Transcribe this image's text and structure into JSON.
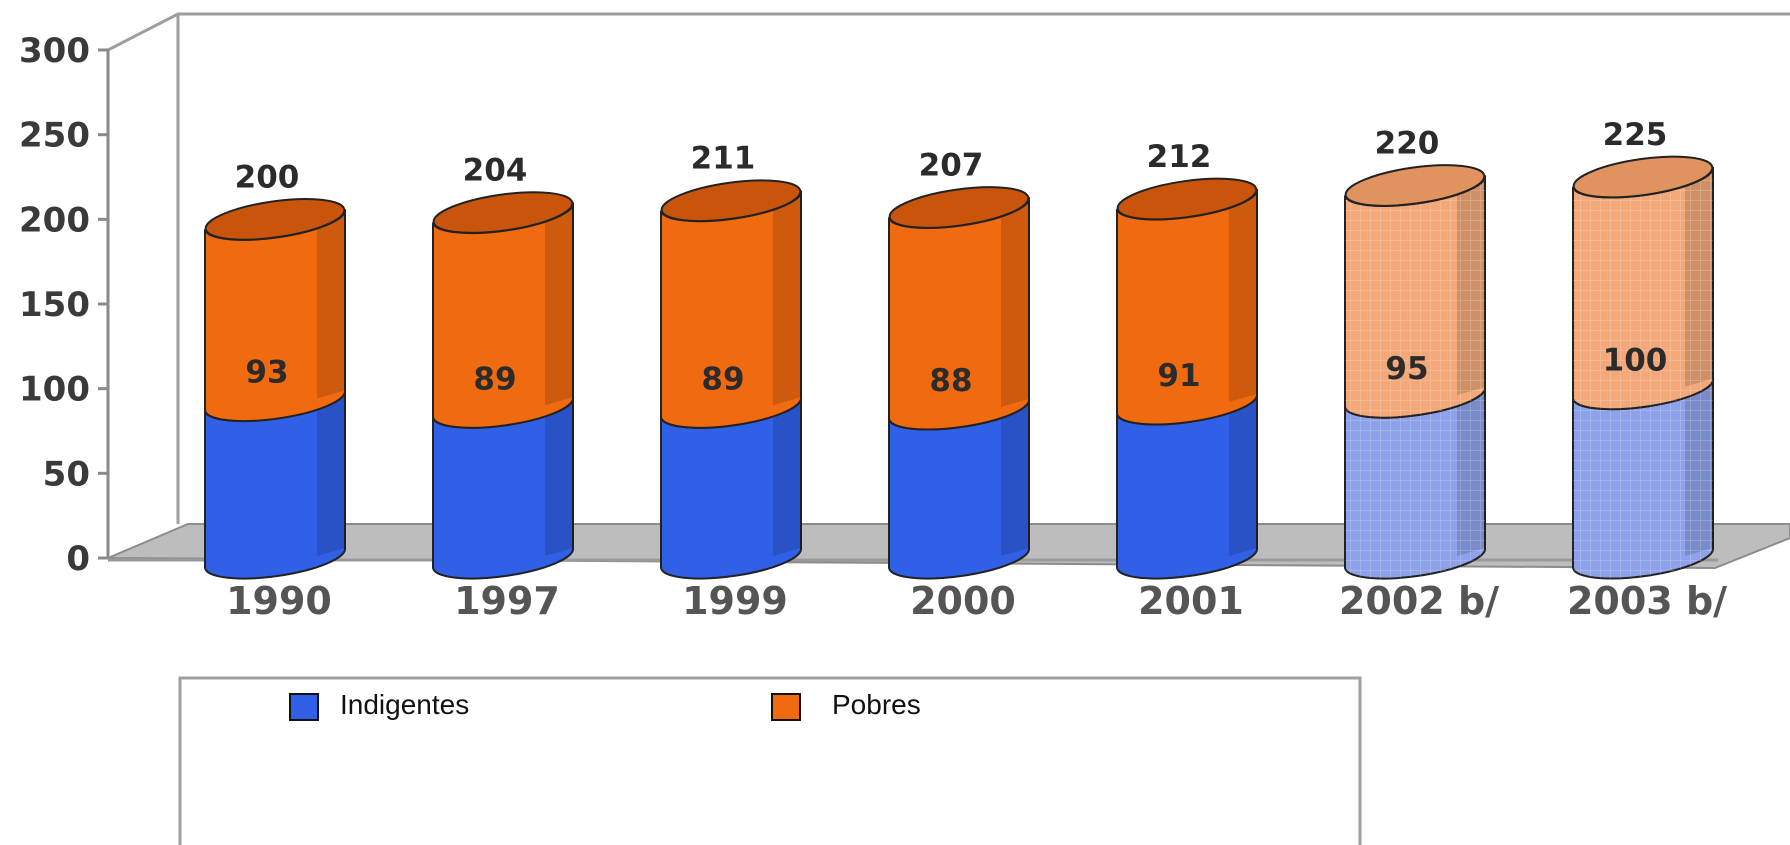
{
  "chart_data": {
    "type": "bar",
    "stacked": true,
    "categories": [
      "1990",
      "1997",
      "1999",
      "2000",
      "2001",
      "2002 b/",
      "2003 b/"
    ],
    "projected": [
      false,
      false,
      false,
      false,
      false,
      true,
      true
    ],
    "series": [
      {
        "name": "Indigentes",
        "values": [
          93,
          89,
          89,
          88,
          91,
          95,
          100
        ],
        "color": "#2f60e6"
      },
      {
        "name": "Pobres",
        "values": [
          107,
          115,
          122,
          119,
          121,
          125,
          125
        ],
        "color": "#f06a10"
      }
    ],
    "totals": [
      200,
      204,
      211,
      207,
      212,
      220,
      225
    ],
    "ylim": [
      0,
      300
    ],
    "yticks": [
      0,
      50,
      100,
      150,
      200,
      250,
      300
    ],
    "title": "",
    "xlabel": "",
    "ylabel": "",
    "legend": "bottom",
    "colors": {
      "indigentes": "#2f60e6",
      "indigentes_projected": "#8ea2ea",
      "pobres": "#f06a10",
      "pobres_projected": "#f2a878",
      "floor": "#bdbdbd",
      "wall": "#9e9e9e"
    }
  }
}
